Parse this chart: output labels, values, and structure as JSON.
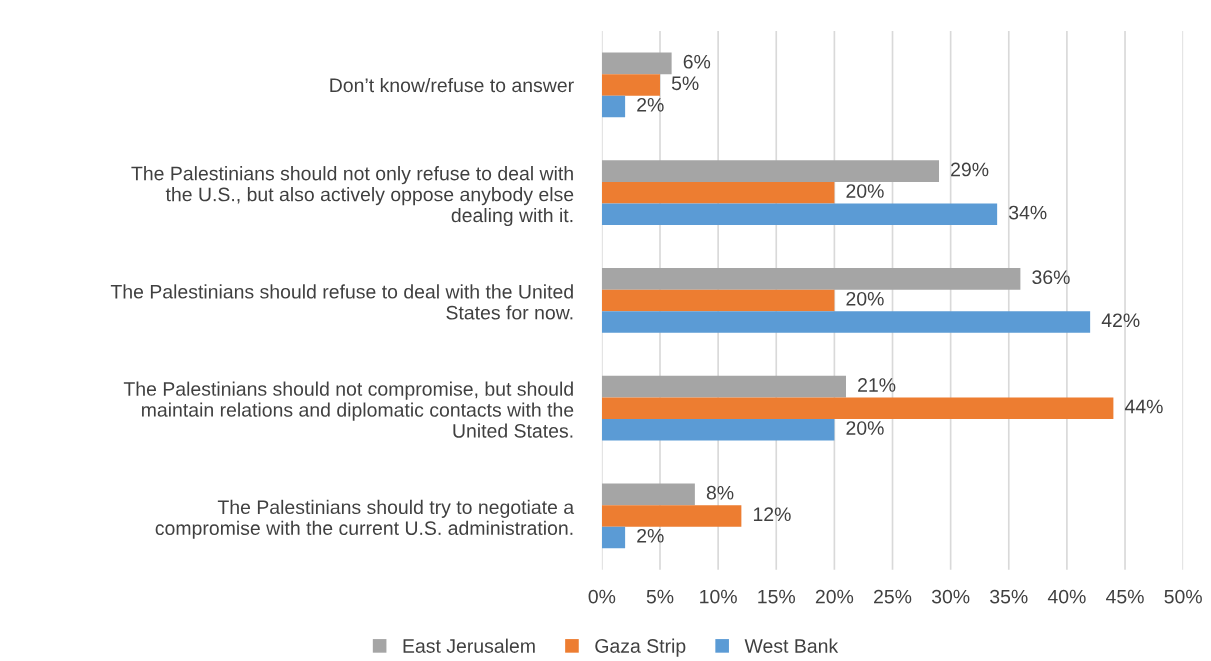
{
  "chart_data": {
    "type": "bar",
    "orientation": "horizontal",
    "categories": [
      "Don’t know/refuse to answer",
      "The Palestinians should not only refuse to deal with\nthe U.S., but also actively oppose anybody else\ndealing with it.",
      "The Palestinians should refuse to deal with the United\nStates for now.",
      "The Palestinians should not compromise, but should\nmaintain relations and diplomatic contacts with the\nUnited States.",
      "The Palestinians should try to negotiate a\ncompromise with the current U.S. administration."
    ],
    "series": [
      {
        "name": "East Jerusalem",
        "color": "#a5a5a5",
        "values": [
          6,
          29,
          36,
          21,
          8
        ],
        "value_labels": [
          "6%",
          "29%",
          "36%",
          "21%",
          "8%"
        ]
      },
      {
        "name": "Gaza Strip",
        "color": "#ed7d31",
        "values": [
          5,
          20,
          20,
          44,
          12
        ],
        "value_labels": [
          "5%",
          "20%",
          "20%",
          "44%",
          "12%"
        ]
      },
      {
        "name": "West Bank",
        "color": "#5b9bd5",
        "values": [
          2,
          34,
          42,
          20,
          2
        ],
        "value_labels": [
          "2%",
          "34%",
          "42%",
          "20%",
          "2%"
        ]
      }
    ],
    "xlim": [
      0,
      50
    ],
    "xticks": [
      {
        "value": 0,
        "label": "0%"
      },
      {
        "value": 5,
        "label": "5%"
      },
      {
        "value": 10,
        "label": "10%"
      },
      {
        "value": 15,
        "label": "15%"
      },
      {
        "value": 20,
        "label": "20%"
      },
      {
        "value": 25,
        "label": "25%"
      },
      {
        "value": 30,
        "label": "30%"
      },
      {
        "value": 35,
        "label": "35%"
      },
      {
        "value": 40,
        "label": "40%"
      },
      {
        "value": 45,
        "label": "45%"
      },
      {
        "value": 50,
        "label": "50%"
      }
    ],
    "grid": "x",
    "legend": "bottom"
  }
}
